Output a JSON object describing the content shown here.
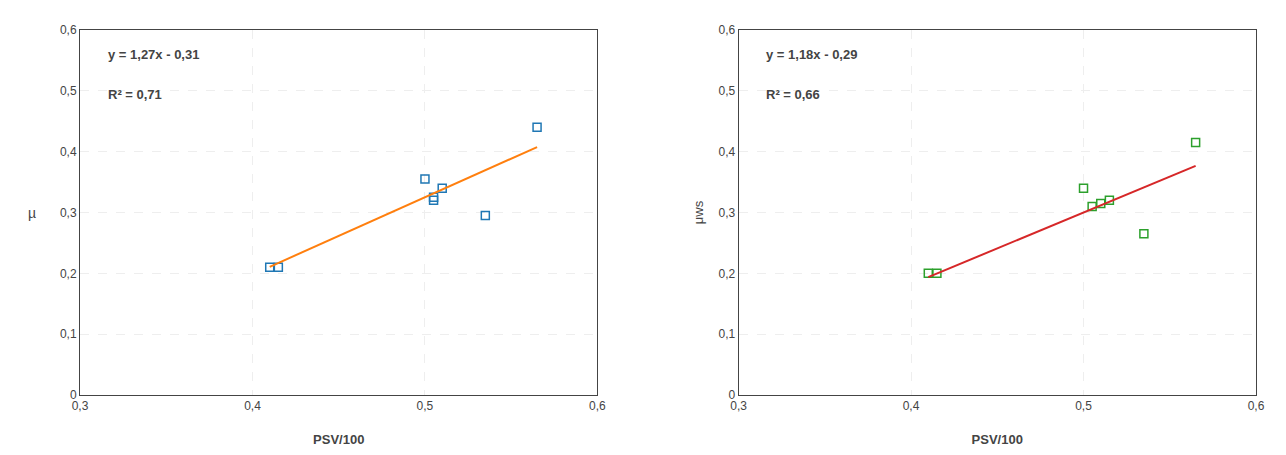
{
  "chart_data": [
    {
      "type": "scatter",
      "xlabel": "PSV/100",
      "ylabel": "µ",
      "xlim": [
        0.3,
        0.6
      ],
      "ylim": [
        0.0,
        0.6
      ],
      "xticks": [
        {
          "value": 0.3,
          "label": "0,3"
        },
        {
          "value": 0.4,
          "label": "0,4"
        },
        {
          "value": 0.5,
          "label": "0,5"
        },
        {
          "value": 0.6,
          "label": "0,6"
        }
      ],
      "yticks": [
        0,
        {
          "value": 0.1,
          "label": "0,1"
        },
        {
          "value": 0.2,
          "label": "0,2"
        },
        {
          "value": 0.3,
          "label": "0,3"
        },
        {
          "value": 0.4,
          "label": "0,4"
        },
        {
          "value": 0.5,
          "label": "0,5"
        },
        {
          "value": 0.6,
          "label": "0,6"
        }
      ],
      "grid": true,
      "annotations": [
        "y = 1,27x - 0,31",
        "R² = 0,71"
      ],
      "series": [
        {
          "type": "scatter",
          "marker": "square-open",
          "x": [
            0.41,
            0.415,
            0.5,
            0.505,
            0.505,
            0.51,
            0.535,
            0.565
          ],
          "values": [
            0.21,
            0.21,
            0.355,
            0.32,
            0.325,
            0.34,
            0.295,
            0.44
          ]
        },
        {
          "type": "line",
          "line_style": "solid",
          "x": [
            0.41,
            0.565
          ],
          "values": [
            0.2107,
            0.40755
          ]
        }
      ]
    },
    {
      "type": "scatter",
      "xlabel": "PSV/100",
      "ylabel": "μws",
      "xlim": [
        0.3,
        0.6
      ],
      "ylim": [
        0.0,
        0.6
      ],
      "xticks": [
        {
          "value": 0.3,
          "label": "0,3"
        },
        {
          "value": 0.4,
          "label": "0,4"
        },
        {
          "value": 0.5,
          "label": "0,5"
        },
        {
          "value": 0.6,
          "label": "0,6"
        }
      ],
      "yticks": [
        0,
        {
          "value": 0.1,
          "label": "0,1"
        },
        {
          "value": 0.2,
          "label": "0,2"
        },
        {
          "value": 0.3,
          "label": "0,3"
        },
        {
          "value": 0.4,
          "label": "0,4"
        },
        {
          "value": 0.5,
          "label": "0,5"
        },
        {
          "value": 0.6,
          "label": "0,6"
        }
      ],
      "grid": true,
      "annotations": [
        "y = 1,18x - 0,29",
        "R² = 0,66"
      ],
      "series": [
        {
          "type": "scatter",
          "marker": "square-open",
          "x": [
            0.41,
            0.415,
            0.5,
            0.505,
            0.51,
            0.515,
            0.535,
            0.565
          ],
          "values": [
            0.2,
            0.2,
            0.34,
            0.31,
            0.315,
            0.32,
            0.265,
            0.415
          ]
        },
        {
          "type": "line",
          "line_style": "solid",
          "x": [
            0.41,
            0.565
          ],
          "values": [
            0.1938,
            0.3767
          ]
        }
      ]
    }
  ]
}
